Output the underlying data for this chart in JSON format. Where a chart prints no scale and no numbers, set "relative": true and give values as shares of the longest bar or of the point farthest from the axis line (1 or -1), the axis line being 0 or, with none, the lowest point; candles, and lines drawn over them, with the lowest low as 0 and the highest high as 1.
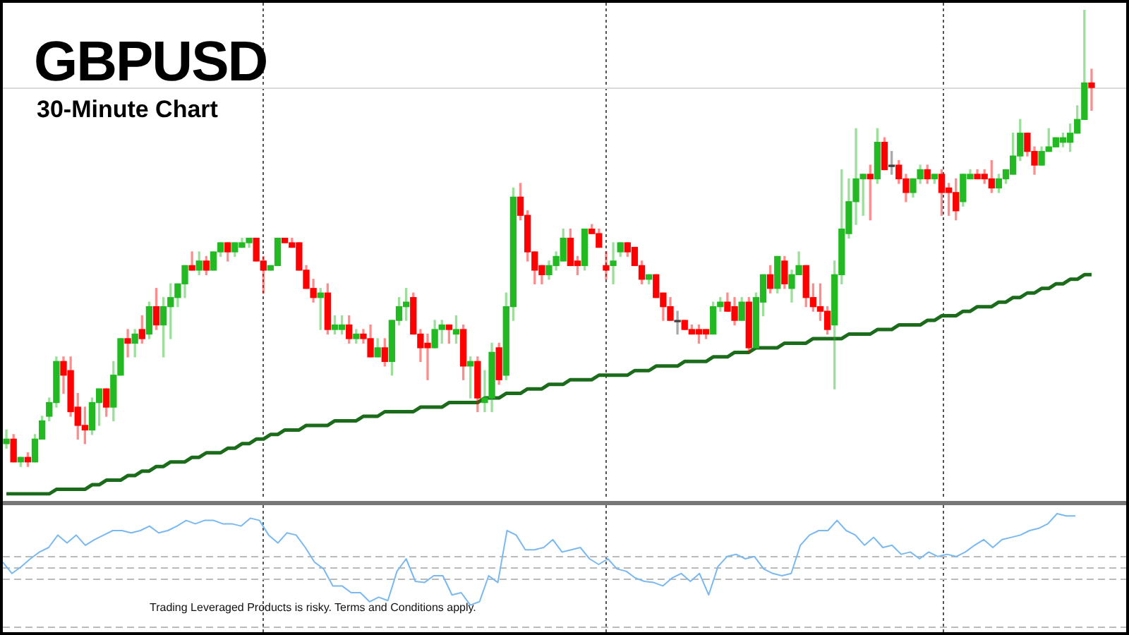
{
  "chart_data": [
    {
      "type": "candlestick",
      "title": "GBPUSD",
      "subtitle": "30-Minute Chart",
      "relative": true,
      "categories": [
        null,
        null,
        null,
        null,
        null,
        null,
        null,
        null,
        null,
        null,
        null,
        null,
        null,
        null,
        null,
        null,
        null,
        null,
        null,
        null,
        null,
        null,
        null,
        null,
        null,
        null,
        null,
        null,
        null,
        null,
        null,
        null,
        null,
        null,
        null,
        null,
        null,
        null,
        null,
        null,
        null,
        null,
        null,
        null,
        null,
        null,
        null,
        null,
        null,
        null,
        null,
        null,
        null,
        null,
        null,
        null,
        null,
        null,
        null,
        null,
        null,
        null,
        null,
        null,
        null,
        null,
        null,
        null,
        null,
        null,
        null,
        null,
        null,
        null,
        null,
        null,
        null,
        null,
        null,
        null,
        null,
        null,
        null,
        null,
        null,
        null,
        null,
        null,
        null,
        null,
        null,
        null,
        null,
        null,
        null,
        null,
        null,
        null,
        null,
        null,
        null,
        null,
        null,
        null,
        null,
        null,
        null,
        null,
        null,
        null,
        null,
        null,
        null,
        null,
        null,
        null,
        null,
        null,
        null,
        null,
        null,
        null,
        null,
        null,
        null,
        null,
        null,
        null,
        null,
        null,
        null,
        null,
        null,
        null,
        null,
        null,
        null,
        null,
        null,
        null,
        null,
        null,
        null,
        null,
        null,
        null,
        null,
        null,
        null,
        null,
        null,
        null,
        null
      ],
      "ohlc": [
        [
          0.05,
          0.08,
          0.04,
          0.06
        ],
        [
          0.06,
          0.07,
          0.01,
          0.01
        ],
        [
          0.01,
          0.02,
          0,
          0.02
        ],
        [
          0.02,
          0.03,
          0,
          0.01
        ],
        [
          0.01,
          0.07,
          0.01,
          0.06
        ],
        [
          0.06,
          0.11,
          0.06,
          0.1
        ],
        [
          0.11,
          0.15,
          0.1,
          0.14
        ],
        [
          0.14,
          0.24,
          0.13,
          0.23
        ],
        [
          0.23,
          0.24,
          0.16,
          0.2
        ],
        [
          0.21,
          0.24,
          0.11,
          0.12
        ],
        [
          0.13,
          0.16,
          0.06,
          0.09
        ],
        [
          0.09,
          0.13,
          0.05,
          0.08
        ],
        [
          0.08,
          0.15,
          0.07,
          0.14
        ],
        [
          0.14,
          0.17,
          0.09,
          0.17
        ],
        [
          0.17,
          0.17,
          0.11,
          0.13
        ],
        [
          0.13,
          0.23,
          0.1,
          0.2
        ],
        [
          0.2,
          0.28,
          0.2,
          0.28
        ],
        [
          0.28,
          0.3,
          0.24,
          0.27
        ],
        [
          0.27,
          0.3,
          0.24,
          0.29
        ],
        [
          0.3,
          0.33,
          0.27,
          0.28
        ],
        [
          0.29,
          0.36,
          0.28,
          0.35
        ],
        [
          0.35,
          0.39,
          0.3,
          0.31
        ],
        [
          0.31,
          0.37,
          0.24,
          0.35
        ],
        [
          0.35,
          0.4,
          0.28,
          0.37
        ],
        [
          0.37,
          0.4,
          0.35,
          0.4
        ],
        [
          0.4,
          0.44,
          0.37,
          0.44
        ],
        [
          0.44,
          0.47,
          0.43,
          0.43
        ],
        [
          0.43,
          0.47,
          0.42,
          0.45
        ],
        [
          0.45,
          0.46,
          0.42,
          0.43
        ],
        [
          0.43,
          0.47,
          0.43,
          0.47
        ],
        [
          0.47,
          0.49,
          0.46,
          0.49
        ],
        [
          0.49,
          0.49,
          0.45,
          0.47
        ],
        [
          0.47,
          0.49,
          0.46,
          0.49
        ],
        [
          0.48,
          0.5,
          0.48,
          0.49
        ],
        [
          0.49,
          0.5,
          0.48,
          0.5
        ],
        [
          0.5,
          0.5,
          0.45,
          0.45
        ],
        [
          0.45,
          0.46,
          0.38,
          0.43
        ],
        [
          0.43,
          0.44,
          0.43,
          0.44
        ],
        [
          0.44,
          0.5,
          0.44,
          0.5
        ],
        [
          0.5,
          0.5,
          0.49,
          0.49
        ],
        [
          0.49,
          0.5,
          0.48,
          0.48
        ],
        [
          0.49,
          0.49,
          0.43,
          0.43
        ],
        [
          0.43,
          0.44,
          0.39,
          0.39
        ],
        [
          0.39,
          0.41,
          0.36,
          0.37
        ],
        [
          0.37,
          0.39,
          0.3,
          0.38
        ],
        [
          0.38,
          0.4,
          0.29,
          0.3
        ],
        [
          0.3,
          0.33,
          0.29,
          0.31
        ],
        [
          0.3,
          0.33,
          0.29,
          0.31
        ],
        [
          0.31,
          0.33,
          0.27,
          0.28
        ],
        [
          0.28,
          0.3,
          0.27,
          0.29
        ],
        [
          0.29,
          0.3,
          0.27,
          0.28
        ],
        [
          0.28,
          0.31,
          0.24,
          0.24
        ],
        [
          0.24,
          0.28,
          0.24,
          0.26
        ],
        [
          0.26,
          0.28,
          0.22,
          0.23
        ],
        [
          0.23,
          0.32,
          0.2,
          0.32
        ],
        [
          0.32,
          0.37,
          0.31,
          0.35
        ],
        [
          0.35,
          0.39,
          0.32,
          0.36
        ],
        [
          0.37,
          0.38,
          0.29,
          0.29
        ],
        [
          0.29,
          0.3,
          0.23,
          0.26
        ],
        [
          0.27,
          0.29,
          0.19,
          0.26
        ],
        [
          0.26,
          0.32,
          0.26,
          0.3
        ],
        [
          0.3,
          0.32,
          0.27,
          0.31
        ],
        [
          0.31,
          0.31,
          0.27,
          0.3
        ],
        [
          0.29,
          0.33,
          0.27,
          0.3
        ],
        [
          0.3,
          0.31,
          0.19,
          0.22
        ],
        [
          0.22,
          0.24,
          0.15,
          0.23
        ],
        [
          0.23,
          0.24,
          0.12,
          0.15
        ],
        [
          0.14,
          0.21,
          0.12,
          0.15
        ],
        [
          0.15,
          0.27,
          0.12,
          0.25
        ],
        [
          0.26,
          0.27,
          0.18,
          0.19
        ],
        [
          0.2,
          0.38,
          0.19,
          0.35
        ],
        [
          0.35,
          0.61,
          0.32,
          0.59
        ],
        [
          0.59,
          0.62,
          0.54,
          0.55
        ],
        [
          0.55,
          0.56,
          0.45,
          0.47
        ],
        [
          0.47,
          0.47,
          0.4,
          0.43
        ],
        [
          0.44,
          0.44,
          0.4,
          0.42
        ],
        [
          0.42,
          0.45,
          0.41,
          0.44
        ],
        [
          0.44,
          0.47,
          0.43,
          0.46
        ],
        [
          0.45,
          0.52,
          0.45,
          0.5
        ],
        [
          0.5,
          0.52,
          0.44,
          0.44
        ],
        [
          0.45,
          0.46,
          0.42,
          0.44
        ],
        [
          0.44,
          0.52,
          0.43,
          0.52
        ],
        [
          0.52,
          0.53,
          0.51,
          0.51
        ],
        [
          0.51,
          0.52,
          0.48,
          0.48
        ],
        [
          0.44,
          0.47,
          0.41,
          0.43
        ],
        [
          0.44,
          0.49,
          0.4,
          0.45
        ],
        [
          0.47,
          0.49,
          0.46,
          0.49
        ],
        [
          0.49,
          0.49,
          0.46,
          0.47
        ],
        [
          0.48,
          0.48,
          0.44,
          0.44
        ],
        [
          0.44,
          0.45,
          0.4,
          0.41
        ],
        [
          0.41,
          0.42,
          0.4,
          0.42
        ],
        [
          0.42,
          0.42,
          0.37,
          0.37
        ],
        [
          0.38,
          0.38,
          0.32,
          0.35
        ],
        [
          0.35,
          0.37,
          0.32,
          0.32
        ],
        [
          0.32,
          0.34,
          0.29,
          0.32
        ],
        [
          0.32,
          0.32,
          0.3,
          0.3
        ],
        [
          0.3,
          0.31,
          0.29,
          0.29
        ],
        [
          0.3,
          0.31,
          0.27,
          0.29
        ],
        [
          0.3,
          0.3,
          0.28,
          0.29
        ],
        [
          0.29,
          0.36,
          0.29,
          0.35
        ],
        [
          0.35,
          0.37,
          0.34,
          0.36
        ],
        [
          0.36,
          0.38,
          0.34,
          0.34
        ],
        [
          0.35,
          0.37,
          0.31,
          0.32
        ],
        [
          0.32,
          0.37,
          0.32,
          0.36
        ],
        [
          0.36,
          0.37,
          0.25,
          0.26
        ],
        [
          0.26,
          0.38,
          0.26,
          0.37
        ],
        [
          0.36,
          0.42,
          0.33,
          0.42
        ],
        [
          0.42,
          0.44,
          0.38,
          0.39
        ],
        [
          0.39,
          0.46,
          0.38,
          0.46
        ],
        [
          0.45,
          0.46,
          0.39,
          0.4
        ],
        [
          0.39,
          0.43,
          0.36,
          0.42
        ],
        [
          0.42,
          0.47,
          0.42,
          0.44
        ],
        [
          0.44,
          0.44,
          0.35,
          0.37
        ],
        [
          0.37,
          0.4,
          0.34,
          0.35
        ],
        [
          0.35,
          0.4,
          0.32,
          0.34
        ],
        [
          0.34,
          0.35,
          0.29,
          0.3
        ],
        [
          0.31,
          0.45,
          0.17,
          0.42
        ],
        [
          0.42,
          0.65,
          0.4,
          0.52
        ],
        [
          0.51,
          0.63,
          0.5,
          0.58
        ],
        [
          0.58,
          0.74,
          0.53,
          0.63
        ],
        [
          0.63,
          0.64,
          0.55,
          0.64
        ],
        [
          0.64,
          0.66,
          0.54,
          0.63
        ],
        [
          0.63,
          0.74,
          0.62,
          0.71
        ],
        [
          0.71,
          0.72,
          0.65,
          0.65
        ],
        [
          0.66,
          0.69,
          0.64,
          0.66
        ],
        [
          0.66,
          0.67,
          0.62,
          0.63
        ],
        [
          0.63,
          0.64,
          0.58,
          0.6
        ],
        [
          0.6,
          0.63,
          0.59,
          0.63
        ],
        [
          0.63,
          0.66,
          0.62,
          0.65
        ],
        [
          0.65,
          0.66,
          0.62,
          0.63
        ],
        [
          0.63,
          0.64,
          0.62,
          0.64
        ],
        [
          0.64,
          0.65,
          0.55,
          0.6
        ],
        [
          0.61,
          0.62,
          0.55,
          0.6
        ],
        [
          0.6,
          0.63,
          0.54,
          0.56
        ],
        [
          0.58,
          0.64,
          0.57,
          0.64
        ],
        [
          0.63,
          0.65,
          0.63,
          0.64
        ],
        [
          0.64,
          0.65,
          0.63,
          0.63
        ],
        [
          0.64,
          0.65,
          0.62,
          0.63
        ],
        [
          0.63,
          0.67,
          0.6,
          0.61
        ],
        [
          0.61,
          0.64,
          0.6,
          0.63
        ],
        [
          0.63,
          0.65,
          0.62,
          0.65
        ],
        [
          0.64,
          0.73,
          0.64,
          0.68
        ],
        [
          0.68,
          0.76,
          0.67,
          0.73
        ],
        [
          0.73,
          0.73,
          0.68,
          0.69
        ],
        [
          0.69,
          0.7,
          0.64,
          0.66
        ],
        [
          0.66,
          0.7,
          0.66,
          0.69
        ],
        [
          0.69,
          0.74,
          0.69,
          0.7
        ],
        [
          0.7,
          0.72,
          0.7,
          0.72
        ],
        [
          0.71,
          0.73,
          0.7,
          0.72
        ],
        [
          0.71,
          0.75,
          0.69,
          0.73
        ],
        [
          0.73,
          0.79,
          0.73,
          0.76
        ],
        [
          0.76,
          1,
          0.76,
          0.84
        ],
        [
          0.84,
          0.87,
          0.78,
          0.83
        ]
      ],
      "colors": [
        "#22b922",
        "#ff0000",
        "#22b922",
        "#ff0000",
        "#22b922",
        "#22b922",
        "#22b922",
        "#22b922",
        "#ff0000",
        "#ff0000",
        "#ff0000",
        "#ff0000",
        "#22b922",
        "#22b922",
        "#ff0000",
        "#22b922",
        "#22b922",
        "#ff0000",
        "#22b922",
        "#ff0000",
        "#22b922",
        "#ff0000",
        "#22b922",
        "#22b922",
        "#22b922",
        "#22b922",
        "#ff0000",
        "#22b922",
        "#ff0000",
        "#22b922",
        "#22b922",
        "#ff0000",
        "#22b922",
        "#22b922",
        "#22b922",
        "#ff0000",
        "#ff0000",
        "#22b922",
        "#22b922",
        "#ff0000",
        "#ff0000",
        "#ff0000",
        "#ff0000",
        "#ff0000",
        "#22b922",
        "#ff0000",
        "#22b922",
        "#22b922",
        "#ff0000",
        "#22b922",
        "#ff0000",
        "#ff0000",
        "#22b922",
        "#ff0000",
        "#22b922",
        "#22b922",
        "#22b922",
        "#ff0000",
        "#ff0000",
        "#ff0000",
        "#22b922",
        "#22b922",
        "#ff0000",
        "#22b922",
        "#ff0000",
        "#22b922",
        "#ff0000",
        "#22b922",
        "#22b922",
        "#ff0000",
        "#22b922",
        "#22b922",
        "#ff0000",
        "#ff0000",
        "#ff0000",
        "#ff0000",
        "#22b922",
        "#22b922",
        "#22b922",
        "#ff0000",
        "#ff0000",
        "#22b922",
        "#ff0000",
        "#ff0000",
        "#ff0000",
        "#22b922",
        "#22b922",
        "#ff0000",
        "#ff0000",
        "#ff0000",
        "#22b922",
        "#ff0000",
        "#ff0000",
        "#ff0000",
        "#404040",
        "#ff0000",
        "#ff0000",
        "#ff0000",
        "#ff0000",
        "#22b922",
        "#22b922",
        "#ff0000",
        "#ff0000",
        "#22b922",
        "#ff0000",
        "#22b922",
        "#22b922",
        "#ff0000",
        "#22b922",
        "#ff0000",
        "#22b922",
        "#22b922",
        "#ff0000",
        "#ff0000",
        "#ff0000",
        "#ff0000",
        "#22b922",
        "#22b922",
        "#22b922",
        "#22b922",
        "#22b922",
        "#ff0000",
        "#22b922",
        "#ff0000",
        "#404040",
        "#ff0000",
        "#ff0000",
        "#22b922",
        "#22b922",
        "#ff0000",
        "#22b922",
        "#ff0000",
        "#ff0000",
        "#ff0000",
        "#22b922",
        "#22b922",
        "#ff0000",
        "#ff0000",
        "#ff0000",
        "#22b922",
        "#22b922",
        "#22b922",
        "#22b922",
        "#ff0000",
        "#ff0000",
        "#22b922",
        "#22b922",
        "#22b922",
        "#22b922",
        "#22b922",
        "#22b922",
        "#22b922",
        "#ff0000"
      ],
      "series": [
        {
          "type": "line",
          "color": "#1a6b1a",
          "values": [
            -0.06,
            -0.06,
            -0.06,
            -0.06,
            -0.06,
            -0.06,
            -0.06,
            -0.05,
            -0.05,
            -0.05,
            -0.05,
            -0.05,
            -0.04,
            -0.04,
            -0.03,
            -0.03,
            -0.03,
            -0.02,
            -0.02,
            -0.01,
            -0.01,
            0,
            0,
            0.01,
            0.01,
            0.01,
            0.02,
            0.02,
            0.03,
            0.03,
            0.03,
            0.04,
            0.04,
            0.05,
            0.05,
            0.06,
            0.06,
            0.07,
            0.07,
            0.08,
            0.08,
            0.08,
            0.09,
            0.09,
            0.09,
            0.09,
            0.1,
            0.1,
            0.1,
            0.1,
            0.11,
            0.11,
            0.11,
            0.12,
            0.12,
            0.12,
            0.12,
            0.12,
            0.13,
            0.13,
            0.13,
            0.13,
            0.14,
            0.14,
            0.14,
            0.14,
            0.14,
            0.15,
            0.15,
            0.15,
            0.16,
            0.16,
            0.16,
            0.17,
            0.17,
            0.17,
            0.18,
            0.18,
            0.18,
            0.19,
            0.19,
            0.19,
            0.19,
            0.2,
            0.2,
            0.2,
            0.2,
            0.2,
            0.21,
            0.21,
            0.21,
            0.22,
            0.22,
            0.22,
            0.22,
            0.23,
            0.23,
            0.23,
            0.23,
            0.24,
            0.24,
            0.24,
            0.25,
            0.25,
            0.25,
            0.26,
            0.26,
            0.26,
            0.26,
            0.27,
            0.27,
            0.27,
            0.27,
            0.28,
            0.28,
            0.28,
            0.28,
            0.28,
            0.29,
            0.29,
            0.29,
            0.29,
            0.3,
            0.3,
            0.3,
            0.31,
            0.31,
            0.31,
            0.31,
            0.32,
            0.32,
            0.33,
            0.33,
            0.33,
            0.34,
            0.34,
            0.35,
            0.35,
            0.35,
            0.36,
            0.36,
            0.37,
            0.37,
            0.38,
            0.38,
            0.39,
            0.39,
            0.4,
            0.4,
            0.41,
            0.41,
            0.42,
            0.42
          ]
        }
      ],
      "ref_lines": [
        {
          "axis": "y",
          "value": 0.83,
          "color": "#d9d9d9",
          "line_style": "solid"
        }
      ]
    },
    {
      "type": "line",
      "relative": true,
      "categories": [
        null,
        null,
        null,
        null,
        null,
        null,
        null,
        null,
        null,
        null,
        null,
        null,
        null,
        null,
        null,
        null,
        null,
        null,
        null,
        null,
        null,
        null,
        null,
        null,
        null,
        null,
        null,
        null,
        null,
        null,
        null,
        null,
        null,
        null,
        null,
        null,
        null,
        null,
        null,
        null,
        null,
        null,
        null,
        null,
        null,
        null,
        null,
        null,
        null,
        null,
        null,
        null,
        null,
        null,
        null,
        null,
        null,
        null,
        null,
        null,
        null,
        null,
        null,
        null,
        null,
        null,
        null,
        null,
        null,
        null,
        null,
        null,
        null,
        null,
        null,
        null,
        null,
        null,
        null,
        null,
        null,
        null,
        null,
        null,
        null,
        null,
        null,
        null,
        null,
        null,
        null,
        null,
        null,
        null,
        null,
        null,
        null,
        null,
        null,
        null,
        null,
        null,
        null,
        null,
        null,
        null,
        null,
        null,
        null,
        null,
        null,
        null,
        null,
        null,
        null,
        null,
        null,
        null
      ],
      "series": [
        {
          "color": "#7ab8f0",
          "values": [
            0.57,
            0.47,
            0.53,
            0.6,
            0.66,
            0.7,
            0.81,
            0.74,
            0.81,
            0.72,
            0.77,
            0.81,
            0.85,
            0.85,
            0.83,
            0.85,
            0.89,
            0.83,
            0.85,
            0.89,
            0.94,
            0.91,
            0.94,
            0.94,
            0.91,
            0.91,
            0.89,
            0.96,
            0.94,
            0.81,
            0.74,
            0.83,
            0.81,
            0.7,
            0.57,
            0.51,
            0.36,
            0.36,
            0.3,
            0.3,
            0.22,
            0.26,
            0.23,
            0.49,
            0.6,
            0.4,
            0.39,
            0.45,
            0.45,
            0.28,
            0.3,
            0.19,
            0.22,
            0.45,
            0.39,
            0.85,
            0.81,
            0.68,
            0.68,
            0.7,
            0.77,
            0.66,
            0.68,
            0.7,
            0.6,
            0.55,
            0.6,
            0.51,
            0.49,
            0.43,
            0.4,
            0.39,
            0.36,
            0.43,
            0.47,
            0.4,
            0.47,
            0.28,
            0.53,
            0.62,
            0.64,
            0.6,
            0.62,
            0.51,
            0.47,
            0.45,
            0.47,
            0.72,
            0.81,
            0.85,
            0.85,
            0.94,
            0.85,
            0.81,
            0.72,
            0.79,
            0.7,
            0.72,
            0.64,
            0.66,
            0.6,
            0.66,
            0.62,
            0.64,
            0.62,
            0.66,
            0.72,
            0.77,
            0.7,
            0.77,
            0.79,
            0.81,
            0.85,
            0.87,
            0.91,
            1,
            0.98,
            0.98
          ]
        }
      ],
      "ref_lines": [
        {
          "axis": "y",
          "value": 0.62,
          "color": "#bbbbbb",
          "line_style": "dashed"
        },
        {
          "axis": "y",
          "value": 0.53,
          "color": "#bbbbbb",
          "line_style": "dashed"
        },
        {
          "axis": "y",
          "value": 0.43,
          "color": "#bbbbbb",
          "line_style": "dashed"
        },
        {
          "axis": "y",
          "value": 0,
          "color": "#bbbbbb",
          "line_style": "dashed"
        }
      ],
      "annotations": [
        "Trading Leveraged Products is risky. Terms and Conditions apply."
      ]
    }
  ]
}
